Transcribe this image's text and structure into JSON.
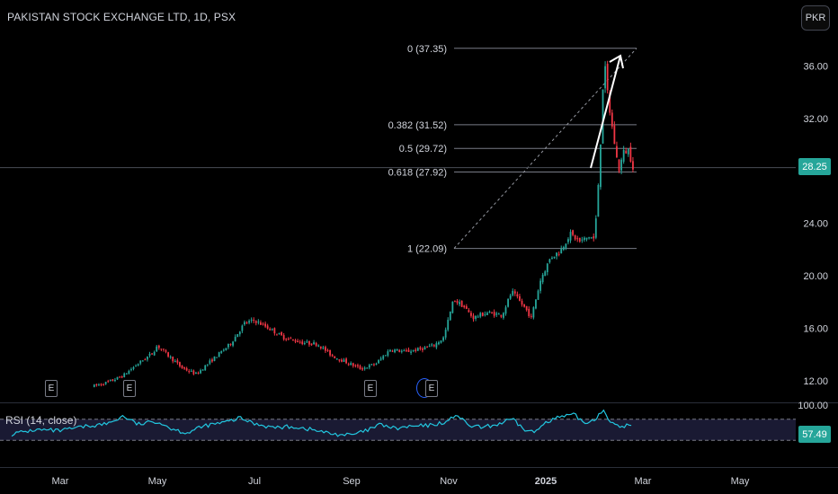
{
  "header": {
    "title": "PAKISTAN STOCK EXCHANGE LTD, 1D, PSX"
  },
  "currency_button": {
    "label": "PKR"
  },
  "earnings_markers": [
    {
      "label": "E"
    },
    {
      "label": "E"
    },
    {
      "label": "E"
    },
    {
      "label": "E"
    }
  ],
  "rsi": {
    "label": "RSI (14, close)",
    "last_value": "57.49",
    "upper": 70,
    "lower": 30
  },
  "price_badge": {
    "value": "28.25"
  },
  "colors": {
    "up": "#26a69a",
    "down": "#f23645",
    "rsi_line": "#22c7e0",
    "rsi_fill": "#1a1a33",
    "fib_line": "#787b86",
    "arrow": "#ffffff",
    "badge": "#26a69a"
  },
  "chart_data": {
    "type": "candlestick",
    "y_axis": {
      "ticks": [
        "36.00",
        "32.00",
        "28.00",
        "24.00",
        "20.00",
        "16.00",
        "12.00"
      ],
      "range": [
        11.5,
        38.5
      ]
    },
    "x_axis": {
      "ticks": [
        "Mar",
        "May",
        "Jul",
        "Sep",
        "Nov",
        "2025",
        "Mar",
        "May"
      ]
    },
    "rsi_axis": {
      "ticks": [
        "100.00"
      ]
    },
    "fib_levels": [
      {
        "label": "0 (37.35)",
        "value": 37.35
      },
      {
        "label": "0.382 (31.52)",
        "value": 31.52
      },
      {
        "label": "0.5 (29.72)",
        "value": 29.72
      },
      {
        "label": "0.618 (27.92)",
        "value": 27.92
      },
      {
        "label": "1 (22.09)",
        "value": 22.09
      }
    ],
    "last_price": 28.25,
    "close_path": [
      {
        "m": 2.7,
        "c": 11.6
      },
      {
        "m": 3.0,
        "c": 11.9
      },
      {
        "m": 3.3,
        "c": 12.4
      },
      {
        "m": 3.6,
        "c": 13.3
      },
      {
        "m": 3.9,
        "c": 14.1
      },
      {
        "m": 4.0,
        "c": 14.7
      },
      {
        "m": 4.2,
        "c": 14.0
      },
      {
        "m": 4.5,
        "c": 13.0
      },
      {
        "m": 4.8,
        "c": 12.5
      },
      {
        "m": 5.1,
        "c": 13.5
      },
      {
        "m": 5.5,
        "c": 14.8
      },
      {
        "m": 5.8,
        "c": 16.4
      },
      {
        "m": 6.0,
        "c": 16.6
      },
      {
        "m": 6.3,
        "c": 16.0
      },
      {
        "m": 6.6,
        "c": 15.3
      },
      {
        "m": 7.0,
        "c": 14.9
      },
      {
        "m": 7.3,
        "c": 14.8
      },
      {
        "m": 7.6,
        "c": 13.9
      },
      {
        "m": 7.9,
        "c": 13.4
      },
      {
        "m": 8.2,
        "c": 12.9
      },
      {
        "m": 8.5,
        "c": 13.3
      },
      {
        "m": 8.8,
        "c": 14.4
      },
      {
        "m": 9.1,
        "c": 14.2
      },
      {
        "m": 9.4,
        "c": 14.4
      },
      {
        "m": 9.7,
        "c": 14.7
      },
      {
        "m": 9.9,
        "c": 15.3
      },
      {
        "m": 10.1,
        "c": 18.2
      },
      {
        "m": 10.3,
        "c": 17.7
      },
      {
        "m": 10.5,
        "c": 16.8
      },
      {
        "m": 10.8,
        "c": 17.2
      },
      {
        "m": 11.1,
        "c": 17.0
      },
      {
        "m": 11.3,
        "c": 18.8
      },
      {
        "m": 11.6,
        "c": 17.4
      },
      {
        "m": 11.7,
        "c": 16.8
      },
      {
        "m": 11.9,
        "c": 19.8
      },
      {
        "m": 12.1,
        "c": 21.4
      },
      {
        "m": 12.3,
        "c": 21.9
      },
      {
        "m": 12.5,
        "c": 23.2
      },
      {
        "m": 12.7,
        "c": 22.6
      },
      {
        "m": 12.9,
        "c": 23.0
      },
      {
        "m": 13.0,
        "c": 22.8
      },
      {
        "m": 13.05,
        "c": 25.0
      },
      {
        "m": 13.12,
        "c": 29.5
      },
      {
        "m": 13.2,
        "c": 36.5
      },
      {
        "m": 13.3,
        "c": 33.0
      },
      {
        "m": 13.4,
        "c": 30.5
      },
      {
        "m": 13.5,
        "c": 28.0
      },
      {
        "m": 13.6,
        "c": 29.4
      },
      {
        "m": 13.7,
        "c": 29.6
      },
      {
        "m": 13.8,
        "c": 28.3
      }
    ],
    "rsi_path": [
      {
        "m": 1.0,
        "r": 42
      },
      {
        "m": 1.5,
        "r": 50
      },
      {
        "m": 2.0,
        "r": 48
      },
      {
        "m": 2.5,
        "r": 56
      },
      {
        "m": 3.0,
        "r": 62
      },
      {
        "m": 3.3,
        "r": 76
      },
      {
        "m": 3.6,
        "r": 60
      },
      {
        "m": 4.0,
        "r": 66
      },
      {
        "m": 4.3,
        "r": 52
      },
      {
        "m": 4.6,
        "r": 44
      },
      {
        "m": 5.0,
        "r": 58
      },
      {
        "m": 5.4,
        "r": 64
      },
      {
        "m": 5.7,
        "r": 72
      },
      {
        "m": 6.0,
        "r": 62
      },
      {
        "m": 6.4,
        "r": 54
      },
      {
        "m": 6.8,
        "r": 56
      },
      {
        "m": 7.2,
        "r": 50
      },
      {
        "m": 7.6,
        "r": 42
      },
      {
        "m": 8.0,
        "r": 40
      },
      {
        "m": 8.3,
        "r": 48
      },
      {
        "m": 8.6,
        "r": 60
      },
      {
        "m": 8.9,
        "r": 52
      },
      {
        "m": 9.2,
        "r": 56
      },
      {
        "m": 9.6,
        "r": 58
      },
      {
        "m": 10.0,
        "r": 66
      },
      {
        "m": 10.15,
        "r": 80
      },
      {
        "m": 10.4,
        "r": 58
      },
      {
        "m": 10.7,
        "r": 54
      },
      {
        "m": 11.0,
        "r": 60
      },
      {
        "m": 11.3,
        "r": 70
      },
      {
        "m": 11.6,
        "r": 48
      },
      {
        "m": 11.8,
        "r": 46
      },
      {
        "m": 12.0,
        "r": 66
      },
      {
        "m": 12.3,
        "r": 74
      },
      {
        "m": 12.6,
        "r": 78
      },
      {
        "m": 12.8,
        "r": 62
      },
      {
        "m": 13.0,
        "r": 70
      },
      {
        "m": 13.2,
        "r": 88
      },
      {
        "m": 13.35,
        "r": 62
      },
      {
        "m": 13.5,
        "r": 55
      },
      {
        "m": 13.7,
        "r": 59
      },
      {
        "m": 13.8,
        "r": 57.49
      }
    ]
  }
}
